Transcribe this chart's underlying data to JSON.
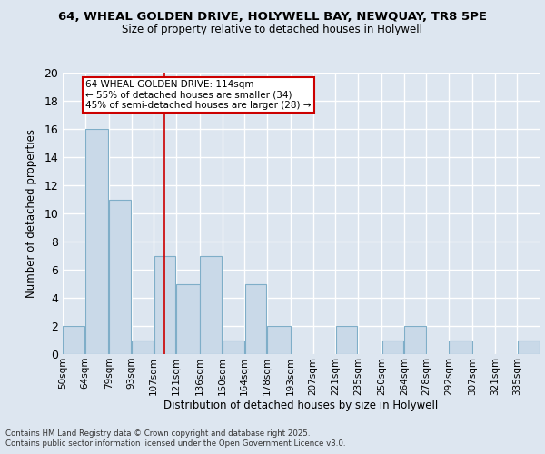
{
  "title_line1": "64, WHEAL GOLDEN DRIVE, HOLYWELL BAY, NEWQUAY, TR8 5PE",
  "title_line2": "Size of property relative to detached houses in Holywell",
  "xlabel": "Distribution of detached houses by size in Holywell",
  "ylabel": "Number of detached properties",
  "categories": [
    "50sqm",
    "64sqm",
    "79sqm",
    "93sqm",
    "107sqm",
    "121sqm",
    "136sqm",
    "150sqm",
    "164sqm",
    "178sqm",
    "193sqm",
    "207sqm",
    "221sqm",
    "235sqm",
    "250sqm",
    "264sqm",
    "278sqm",
    "292sqm",
    "307sqm",
    "321sqm",
    "335sqm"
  ],
  "values": [
    2,
    16,
    11,
    1,
    7,
    5,
    7,
    1,
    5,
    2,
    0,
    0,
    2,
    0,
    1,
    2,
    0,
    1,
    0,
    0,
    1
  ],
  "bar_color": "#c9d9e8",
  "bar_edge_color": "#7faec8",
  "background_color": "#dde6f0",
  "grid_color": "#ffffff",
  "annotation_text": "64 WHEAL GOLDEN DRIVE: 114sqm\n← 55% of detached houses are smaller (34)\n45% of semi-detached houses are larger (28) →",
  "annotation_box_color": "#ffffff",
  "annotation_box_edge": "#cc0000",
  "red_line_x": 114,
  "bin_edges": [
    50,
    64,
    79,
    93,
    107,
    121,
    136,
    150,
    164,
    178,
    193,
    207,
    221,
    235,
    250,
    264,
    278,
    292,
    307,
    321,
    335,
    349
  ],
  "ylim": [
    0,
    20
  ],
  "yticks": [
    0,
    2,
    4,
    6,
    8,
    10,
    12,
    14,
    16,
    18,
    20
  ],
  "footnote1": "Contains HM Land Registry data © Crown copyright and database right 2025.",
  "footnote2": "Contains public sector information licensed under the Open Government Licence v3.0."
}
